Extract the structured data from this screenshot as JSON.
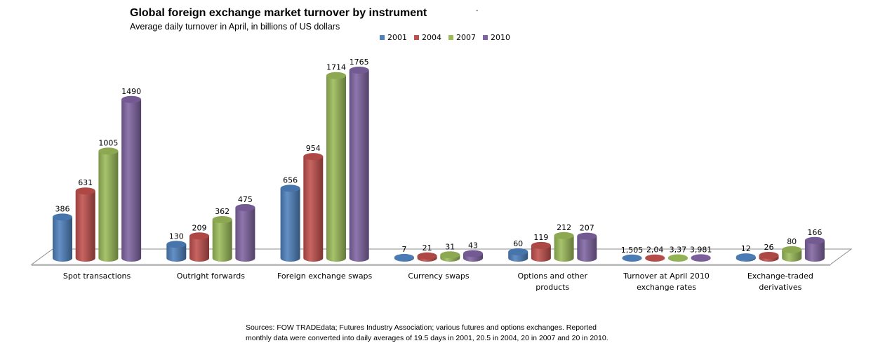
{
  "header": {
    "title": "Global foreign exchange market turnover by instrument",
    "subtitle": "Average daily turnover in April, in billions of US dollars",
    "stray_mark": "-"
  },
  "chart_data": {
    "type": "bar",
    "style": "3d-cylinder",
    "title": "Global foreign exchange market turnover by instrument",
    "subtitle": "Average daily turnover in April, in billions of US dollars",
    "xlabel": "",
    "ylabel": "",
    "ylim": [
      0,
      1800
    ],
    "grid": false,
    "legend_position": "top",
    "categories": [
      [
        "Spot transactions"
      ],
      [
        "Outright forwards"
      ],
      [
        "Foreign exchange swaps"
      ],
      [
        "Currency swaps"
      ],
      [
        "Options and other",
        "products"
      ],
      [
        "Turnover at April 2010",
        "exchange rates"
      ],
      [
        "Exchange-traded",
        "derivatives"
      ]
    ],
    "series": [
      {
        "name": "2001",
        "color": "#4f81bd",
        "values": [
          386,
          130,
          656,
          7,
          60,
          1.505,
          12
        ],
        "labels": [
          "386",
          "130",
          "656",
          "7",
          "60",
          "1,505",
          "12"
        ]
      },
      {
        "name": "2004",
        "color": "#c0504d",
        "values": [
          631,
          209,
          954,
          21,
          119,
          2.04,
          26
        ],
        "labels": [
          "631",
          "209",
          "954",
          "21",
          "119",
          "2,04",
          "26"
        ]
      },
      {
        "name": "2007",
        "color": "#9bbb59",
        "values": [
          1005,
          362,
          1714,
          31,
          212,
          3.37,
          80
        ],
        "labels": [
          "1005",
          "362",
          "1714",
          "31",
          "212",
          "3,37",
          "80"
        ]
      },
      {
        "name": "2010",
        "color": "#8064a2",
        "values": [
          1490,
          475,
          1765,
          43,
          207,
          3.981,
          166
        ],
        "labels": [
          "1490",
          "475",
          "1765",
          "43",
          "207",
          "3,981",
          "166"
        ]
      }
    ]
  },
  "footer": {
    "sources_line1": "Sources: FOW  TRADEdata; Futures Industry Association; various futures and options exchanges. Reported",
    "sources_line2": "monthly data were converted into daily averages of  19.5 days in 2001, 20.5 in 2004, 20 in 2007 and 20 in 2010."
  }
}
